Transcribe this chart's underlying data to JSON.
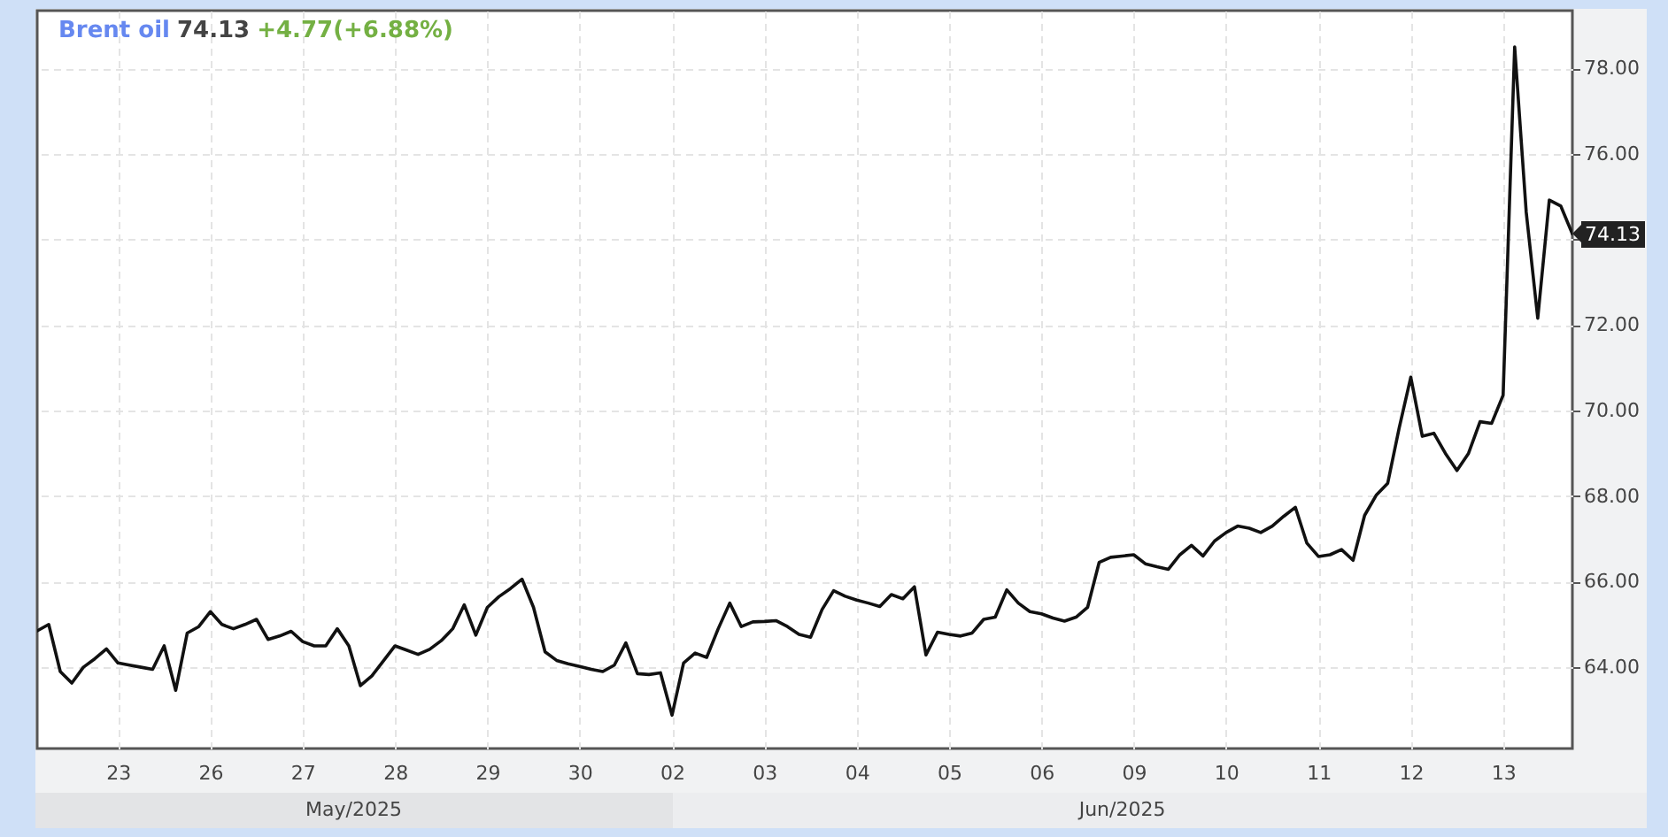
{
  "chart_data": {
    "type": "line",
    "title": "Brent oil",
    "subtitle": "74.13",
    "annotations": [
      "+4.77(+6.88%)",
      "74.13",
      "May/2025",
      "Jun/2025"
    ],
    "categories": [
      null,
      null,
      null,
      null,
      null,
      null,
      null,
      "23",
      null,
      null,
      null,
      null,
      null,
      null,
      null,
      "26",
      null,
      null,
      null,
      null,
      null,
      null,
      null,
      "27",
      null,
      null,
      null,
      null,
      null,
      null,
      null,
      "28",
      null,
      null,
      null,
      null,
      null,
      null,
      null,
      "29",
      null,
      null,
      null,
      null,
      null,
      null,
      null,
      "30",
      null,
      null,
      null,
      null,
      null,
      null,
      null,
      "02",
      null,
      null,
      null,
      null,
      null,
      null,
      null,
      "03",
      null,
      null,
      null,
      null,
      null,
      null,
      null,
      "04",
      null,
      null,
      null,
      null,
      null,
      null,
      null,
      "05",
      null,
      null,
      null,
      null,
      null,
      null,
      null,
      "06",
      null,
      null,
      null,
      null,
      null,
      null,
      null,
      "09",
      null,
      null,
      null,
      null,
      null,
      null,
      null,
      "10",
      null,
      null,
      null,
      null,
      null,
      null,
      null,
      "11",
      null,
      null,
      null,
      null,
      null,
      null,
      null,
      "12",
      null,
      null,
      null,
      null,
      null,
      null,
      null,
      "13",
      null,
      null,
      null,
      null,
      null,
      null
    ],
    "values": [
      64.85,
      65.0,
      63.9,
      63.63,
      64.0,
      64.2,
      64.43,
      64.1,
      64.05,
      64.0,
      63.95,
      64.5,
      63.46,
      64.8,
      64.95,
      65.3,
      65.0,
      64.9,
      65.0,
      65.12,
      64.65,
      64.73,
      64.84,
      64.6,
      64.5,
      64.5,
      64.9,
      64.5,
      63.57,
      63.8,
      64.15,
      64.5,
      64.4,
      64.3,
      64.42,
      64.62,
      64.9,
      65.46,
      64.75,
      65.4,
      65.65,
      65.84,
      66.06,
      65.4,
      64.36,
      64.16,
      64.08,
      64.02,
      63.95,
      63.9,
      64.05,
      64.57,
      63.85,
      63.83,
      63.87,
      62.88,
      64.1,
      64.33,
      64.23,
      64.9,
      65.5,
      64.95,
      65.06,
      65.07,
      65.09,
      64.95,
      64.77,
      64.7,
      65.35,
      65.79,
      65.66,
      65.57,
      65.5,
      65.42,
      65.7,
      65.6,
      65.88,
      64.29,
      64.82,
      64.77,
      64.73,
      64.8,
      65.12,
      65.17,
      65.81,
      65.5,
      65.3,
      65.25,
      65.15,
      65.08,
      65.17,
      65.4,
      66.45,
      66.57,
      66.6,
      66.63,
      66.42,
      66.35,
      66.29,
      66.63,
      66.85,
      66.6,
      66.95,
      67.15,
      67.3,
      67.25,
      67.15,
      67.3,
      67.53,
      67.74,
      66.9,
      66.59,
      66.63,
      66.75,
      66.5,
      67.55,
      68.02,
      68.3,
      69.6,
      70.78,
      69.4,
      69.47,
      69.0,
      68.6,
      69.0,
      69.74,
      69.7,
      70.36,
      78.5,
      74.64,
      72.16,
      74.92,
      74.78,
      74.13
    ],
    "color": "#111111",
    "ylim": [
      62.1,
      79.35
    ],
    "yticks": [
      {
        "value": 64,
        "label": "64.00"
      },
      {
        "value": 66,
        "label": "66.00"
      },
      {
        "value": 68,
        "label": "68.00"
      },
      {
        "value": 70,
        "label": "70.00"
      },
      {
        "value": 72,
        "label": "72.00"
      },
      {
        "value": 74,
        "label": null
      },
      {
        "value": 76,
        "label": "76.00"
      },
      {
        "value": 78,
        "label": "78.00"
      }
    ],
    "grid": true
  }
}
